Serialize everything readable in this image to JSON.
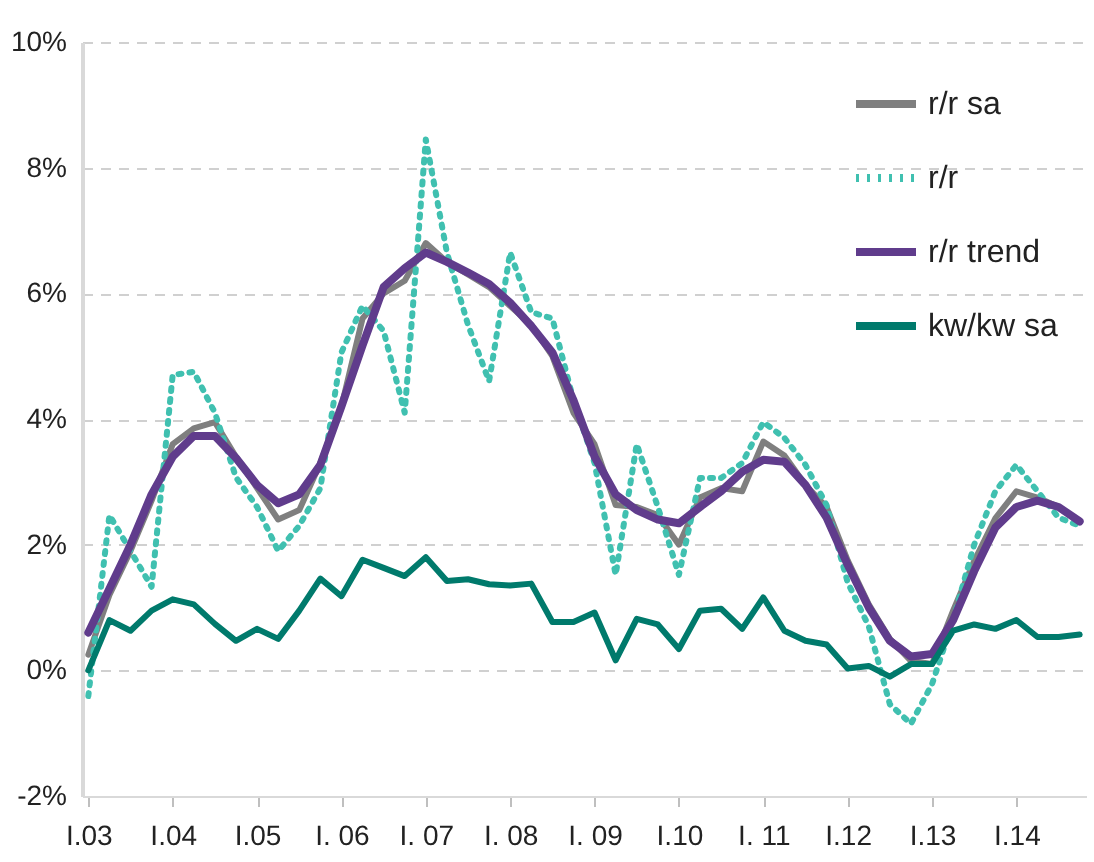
{
  "chart_data": {
    "type": "line",
    "categories": [
      "I.03",
      null,
      null,
      null,
      "I.04",
      null,
      null,
      null,
      "I.05",
      null,
      null,
      null,
      "I. 06",
      null,
      null,
      null,
      "I. 07",
      null,
      null,
      null,
      "I. 08",
      null,
      null,
      null,
      "I. 09",
      null,
      null,
      null,
      "I.10",
      null,
      null,
      null,
      "I. 11",
      null,
      null,
      null,
      "I.12",
      null,
      null,
      null,
      "I.13",
      null,
      null,
      null,
      "I.14",
      null,
      null,
      null
    ],
    "series": [
      {
        "name": "r/r sa",
        "color": "#7f7f7f",
        "line_style": "solid",
        "values": [
          0.25,
          1.2,
          1.9,
          2.7,
          3.6,
          3.85,
          3.95,
          3.4,
          2.9,
          2.4,
          2.55,
          3.3,
          4.2,
          5.6,
          6.0,
          6.2,
          6.8,
          6.5,
          6.3,
          6.1,
          5.8,
          5.5,
          5.0,
          4.1,
          3.6,
          2.63,
          2.6,
          2.47,
          2.0,
          2.75,
          2.9,
          2.85,
          3.64,
          3.42,
          2.95,
          2.6,
          1.75,
          1.05,
          0.5,
          0.15,
          0.1,
          0.95,
          1.74,
          2.42,
          2.85,
          2.75,
          2.6,
          2.37
        ]
      },
      {
        "name": "r/r",
        "color": "#40c0b0",
        "line_style": "dotted",
        "values": [
          -0.41,
          2.47,
          1.9,
          1.33,
          4.7,
          4.75,
          4.1,
          3.07,
          2.6,
          1.9,
          2.3,
          2.9,
          5.06,
          5.8,
          5.4,
          4.1,
          8.45,
          6.65,
          5.5,
          4.6,
          6.65,
          5.7,
          5.6,
          4.3,
          3.3,
          1.52,
          3.6,
          2.6,
          1.52,
          3.06,
          3.06,
          3.3,
          3.95,
          3.7,
          3.27,
          2.63,
          1.4,
          0.7,
          -0.54,
          -0.85,
          -0.22,
          0.8,
          2.0,
          2.85,
          3.27,
          2.85,
          2.43,
          2.3
        ]
      },
      {
        "name": "r/r trend",
        "color": "#603c8c",
        "line_style": "solid",
        "values": [
          0.6,
          1.3,
          2.0,
          2.8,
          3.4,
          3.73,
          3.73,
          3.38,
          2.95,
          2.66,
          2.8,
          3.27,
          4.2,
          5.17,
          6.1,
          6.4,
          6.65,
          6.5,
          6.33,
          6.15,
          5.85,
          5.48,
          5.06,
          4.3,
          3.4,
          2.8,
          2.55,
          2.4,
          2.34,
          2.6,
          2.85,
          3.16,
          3.35,
          3.32,
          2.95,
          2.43,
          1.68,
          1.0,
          0.47,
          0.22,
          0.26,
          0.8,
          1.58,
          2.27,
          2.6,
          2.7,
          2.6,
          2.37
        ]
      },
      {
        "name": "kw/kw sa",
        "color": "#007a6c",
        "line_style": "solid",
        "values": [
          0.0,
          0.8,
          0.63,
          0.95,
          1.13,
          1.05,
          0.74,
          0.47,
          0.66,
          0.5,
          0.95,
          1.46,
          1.18,
          1.76,
          1.63,
          1.5,
          1.8,
          1.42,
          1.45,
          1.37,
          1.35,
          1.38,
          0.77,
          0.77,
          0.92,
          0.16,
          0.82,
          0.73,
          0.34,
          0.95,
          0.98,
          0.66,
          1.16,
          0.63,
          0.47,
          0.41,
          0.03,
          0.07,
          -0.1,
          0.1,
          0.1,
          0.63,
          0.73,
          0.66,
          0.8,
          0.53,
          0.53,
          0.57
        ]
      }
    ],
    "ylim": [
      -2,
      10
    ],
    "yticks": [
      {
        "value": -2,
        "label": "-2%"
      },
      {
        "value": 0,
        "label": "0%"
      },
      {
        "value": 2,
        "label": "2%"
      },
      {
        "value": 4,
        "label": "4%"
      },
      {
        "value": 6,
        "label": "6%"
      },
      {
        "value": 8,
        "label": "8%"
      },
      {
        "value": 10,
        "label": "10%"
      }
    ],
    "grid": "y",
    "legend": "top right",
    "marker": "none"
  }
}
